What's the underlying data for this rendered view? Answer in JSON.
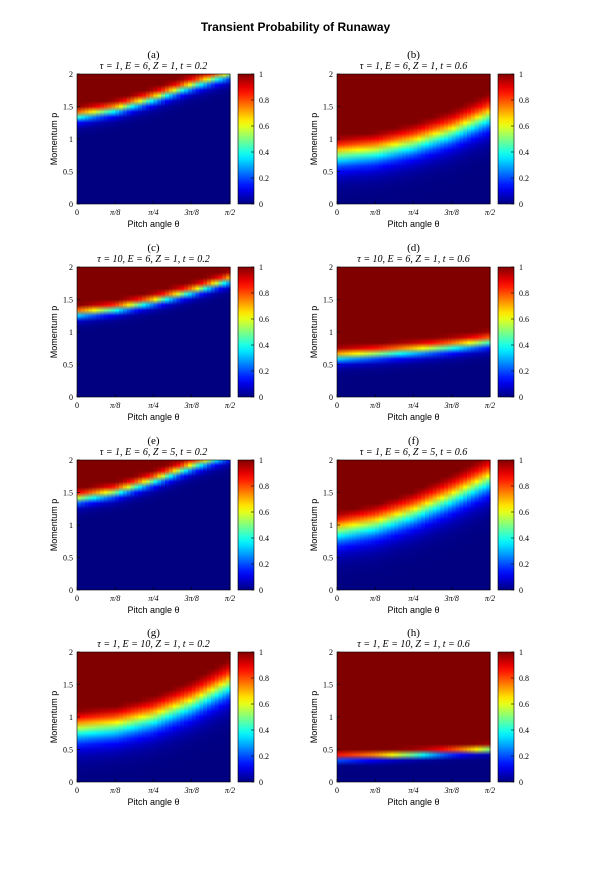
{
  "figure": {
    "title": "Transient Probability of Runaway"
  },
  "chart_data": [
    {
      "type": "heatmap",
      "label": "(a)",
      "title": "τ = 1,  E = 6,  Z = 1,  t = 0.2",
      "xlabel": "Pitch angle θ",
      "ylabel": "Momentum p",
      "xlim": [
        0,
        1.5708
      ],
      "ylim": [
        0,
        2
      ],
      "xticks": [
        "0",
        "π/8",
        "π/4",
        "3π/8",
        "π/2"
      ],
      "yticks": [
        "0",
        "0.5",
        "1",
        "1.5",
        "2"
      ],
      "colorbar": {
        "ticks": [
          "0",
          "0.2",
          "0.4",
          "0.6",
          "0.8",
          "1"
        ],
        "range": [
          0,
          1
        ]
      },
      "boundary_p": [
        1.35,
        1.45,
        1.62,
        1.82,
        2.0
      ],
      "width": 0.12
    },
    {
      "type": "heatmap",
      "label": "(b)",
      "title": "τ = 1,  E = 6,  Z = 1,  t = 0.6",
      "xlabel": "Pitch angle θ",
      "ylabel": "Momentum p",
      "xlim": [
        0,
        1.5708
      ],
      "ylim": [
        0,
        2
      ],
      "xticks": [
        "0",
        "π/8",
        "π/4",
        "3π/8",
        "π/2"
      ],
      "yticks": [
        "0",
        "0.5",
        "1",
        "1.5",
        "2"
      ],
      "colorbar": {
        "ticks": [
          "0",
          "0.2",
          "0.4",
          "0.6",
          "0.8",
          "1"
        ],
        "range": [
          0,
          1
        ]
      },
      "boundary_p": [
        0.75,
        0.8,
        0.92,
        1.1,
        1.35
      ],
      "width": 0.28
    },
    {
      "type": "heatmap",
      "label": "(c)",
      "title": "τ = 10,  E = 6,  Z = 1,  t = 0.2",
      "xlabel": "Pitch angle θ",
      "ylabel": "Momentum p",
      "xlim": [
        0,
        1.5708
      ],
      "ylim": [
        0,
        2
      ],
      "xticks": [
        "0",
        "π/8",
        "π/4",
        "3π/8",
        "π/2"
      ],
      "yticks": [
        "0",
        "0.5",
        "1",
        "1.5",
        "2"
      ],
      "colorbar": {
        "ticks": [
          "0",
          "0.2",
          "0.4",
          "0.6",
          "0.8",
          "1"
        ],
        "range": [
          0,
          1
        ]
      },
      "boundary_p": [
        1.28,
        1.35,
        1.47,
        1.62,
        1.8
      ],
      "width": 0.1
    },
    {
      "type": "heatmap",
      "label": "(d)",
      "title": "τ = 10,  E = 6,  Z = 1,  t = 0.6",
      "xlabel": "Pitch angle θ",
      "ylabel": "Momentum p",
      "xlim": [
        0,
        1.5708
      ],
      "ylim": [
        0,
        2
      ],
      "xticks": [
        "0",
        "π/8",
        "π/4",
        "3π/8",
        "π/2"
      ],
      "yticks": [
        "0",
        "0.5",
        "1",
        "1.5",
        "2"
      ],
      "colorbar": {
        "ticks": [
          "0",
          "0.2",
          "0.4",
          "0.6",
          "0.8",
          "1"
        ],
        "range": [
          0,
          1
        ]
      },
      "boundary_p": [
        0.62,
        0.66,
        0.71,
        0.77,
        0.85
      ],
      "width": 0.12
    },
    {
      "type": "heatmap",
      "label": "(e)",
      "title": "τ = 1,  E = 6,  Z = 5,  t = 0.2",
      "xlabel": "Pitch angle θ",
      "ylabel": "Momentum p",
      "xlim": [
        0,
        1.5708
      ],
      "ylim": [
        0,
        2
      ],
      "xticks": [
        "0",
        "π/8",
        "π/4",
        "3π/8",
        "π/2"
      ],
      "yticks": [
        "0",
        "0.5",
        "1",
        "1.5",
        "2"
      ],
      "colorbar": {
        "ticks": [
          "0",
          "0.2",
          "0.4",
          "0.6",
          "0.8",
          "1"
        ],
        "range": [
          0,
          1
        ]
      },
      "boundary_p": [
        1.4,
        1.5,
        1.68,
        1.9,
        2.1
      ],
      "width": 0.12
    },
    {
      "type": "heatmap",
      "label": "(f)",
      "title": "τ = 1,  E = 6,  Z = 5,  t = 0.6",
      "xlabel": "Pitch angle θ",
      "ylabel": "Momentum p",
      "xlim": [
        0,
        1.5708
      ],
      "ylim": [
        0,
        2
      ],
      "xticks": [
        "0",
        "π/8",
        "π/4",
        "3π/8",
        "π/2"
      ],
      "yticks": [
        "0",
        "0.5",
        "1",
        "1.5",
        "2"
      ],
      "colorbar": {
        "ticks": [
          "0",
          "0.2",
          "0.4",
          "0.6",
          "0.8",
          "1"
        ],
        "range": [
          0,
          1
        ]
      },
      "boundary_p": [
        0.9,
        1.0,
        1.18,
        1.42,
        1.7
      ],
      "width": 0.3
    },
    {
      "type": "heatmap",
      "label": "(g)",
      "title": "τ = 1,  E = 10,  Z = 1,  t = 0.2",
      "xlabel": "Pitch angle θ",
      "ylabel": "Momentum p",
      "xlim": [
        0,
        1.5708
      ],
      "ylim": [
        0,
        2
      ],
      "xticks": [
        "0",
        "π/8",
        "π/4",
        "3π/8",
        "π/2"
      ],
      "yticks": [
        "0",
        "0.5",
        "1",
        "1.5",
        "2"
      ],
      "colorbar": {
        "ticks": [
          "0",
          "0.2",
          "0.4",
          "0.6",
          "0.8",
          "1"
        ],
        "range": [
          0,
          1
        ]
      },
      "boundary_p": [
        0.8,
        0.85,
        0.98,
        1.2,
        1.5
      ],
      "width": 0.3
    },
    {
      "type": "heatmap",
      "label": "(h)",
      "title": "τ = 1,  E = 10,  Z = 1,  t = 0.6",
      "xlabel": "Pitch angle θ",
      "ylabel": "Momentum p",
      "xlim": [
        0,
        1.5708
      ],
      "ylim": [
        0,
        2
      ],
      "xticks": [
        "0",
        "π/8",
        "π/4",
        "3π/8",
        "π/2"
      ],
      "yticks": [
        "0",
        "0.5",
        "1",
        "1.5",
        "2"
      ],
      "colorbar": {
        "ticks": [
          "0",
          "0.2",
          "0.4",
          "0.6",
          "0.8",
          "1"
        ],
        "range": [
          0,
          1
        ]
      },
      "boundary_p": [
        0.37,
        0.39,
        0.42,
        0.46,
        0.5
      ],
      "width": 0.06
    }
  ]
}
